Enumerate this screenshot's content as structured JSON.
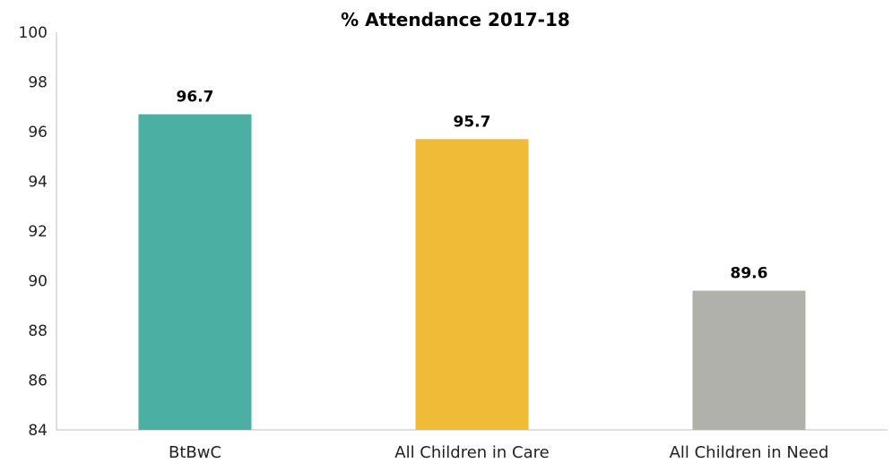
{
  "chart_data": {
    "type": "bar",
    "title": "% Attendance 2017-18",
    "categories": [
      "BtBwC",
      "All Children in Care",
      "All Children in Need"
    ],
    "values": [
      96.7,
      95.7,
      89.6
    ],
    "value_labels": [
      "96.7",
      "95.7",
      "89.6"
    ],
    "colors": [
      "#4BB0A3",
      "#F0BC38",
      "#B1B1AB"
    ],
    "xlabel": "",
    "ylabel": "",
    "ylim": [
      84,
      100
    ],
    "yticks": [
      "84",
      "86",
      "88",
      "90",
      "92",
      "94",
      "96",
      "98",
      "100"
    ],
    "grid": false,
    "legend": "none"
  }
}
